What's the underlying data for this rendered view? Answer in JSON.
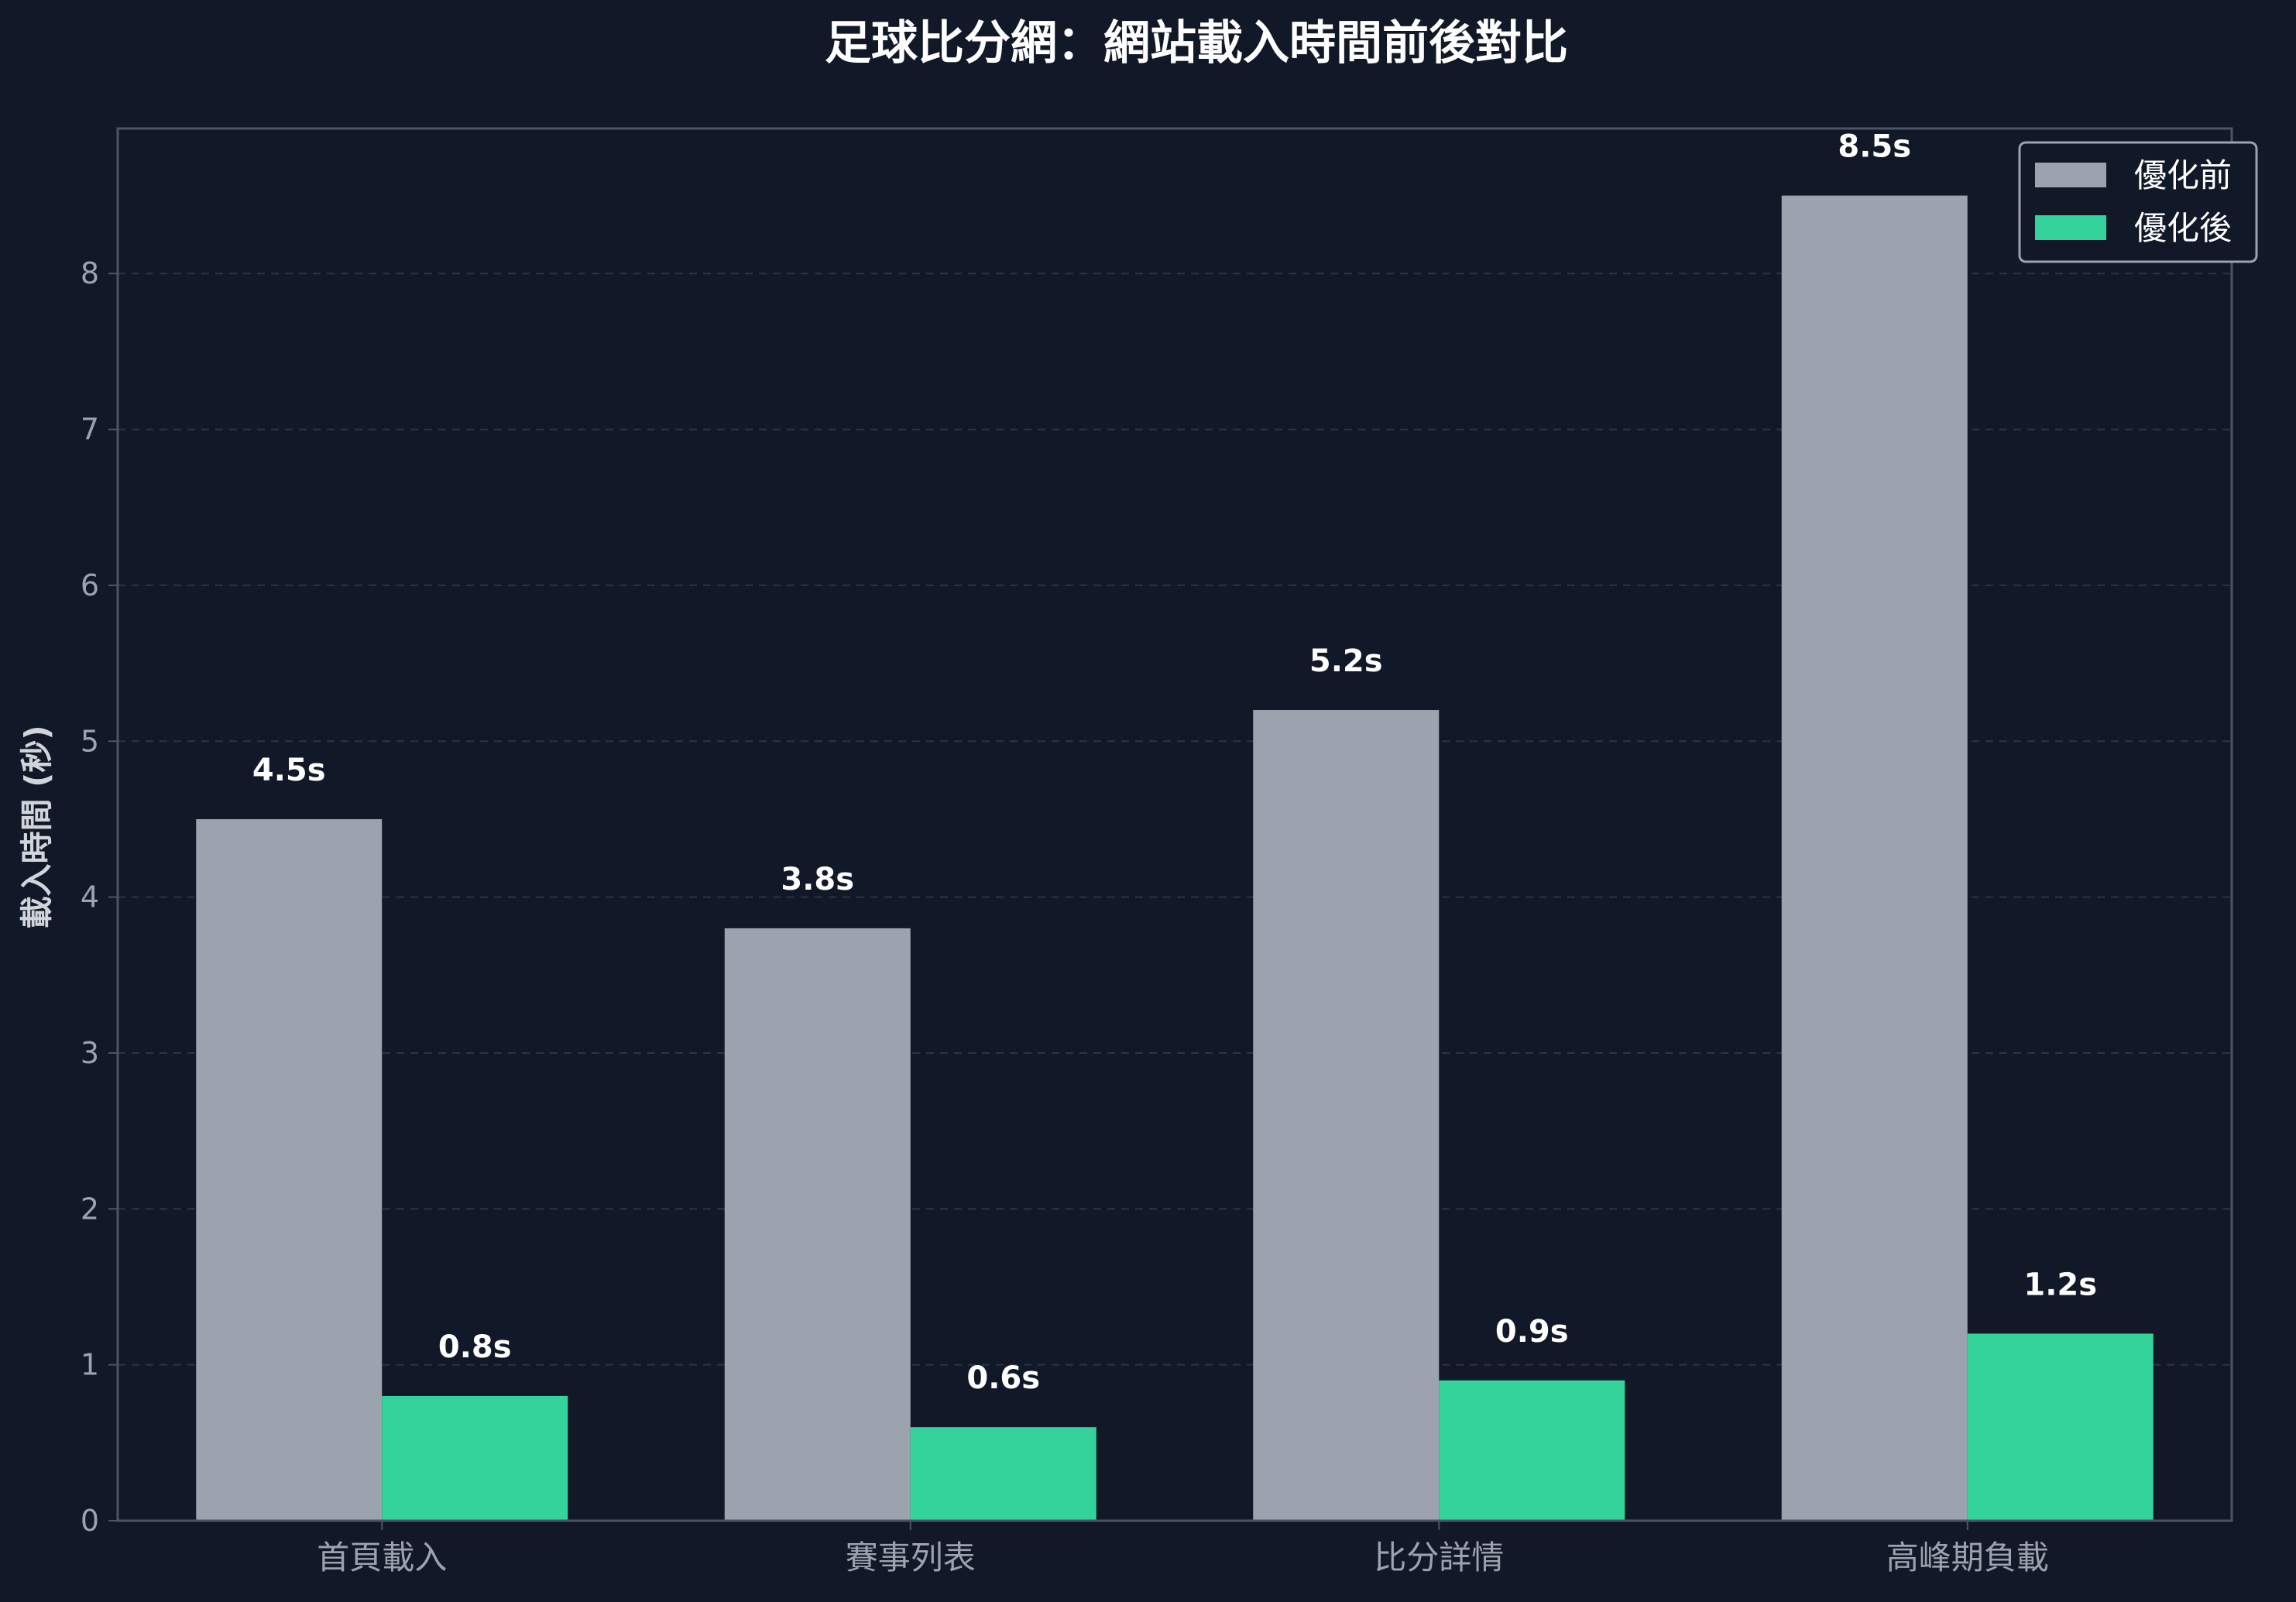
{
  "chart_data": {
    "type": "bar",
    "title": "足球比分網：網站載入時間前後對比",
    "ylabel": "載入時間 (秒)",
    "xlabel": "",
    "ylim": [
      0,
      8.93
    ],
    "yticks": [
      "0",
      "1",
      "2",
      "3",
      "4",
      "5",
      "6",
      "7",
      "8"
    ],
    "categories": [
      "首頁載入",
      "賽事列表",
      "比分詳情",
      "高峰期負載"
    ],
    "series": [
      {
        "name": "優化前",
        "values": [
          4.5,
          3.8,
          5.2,
          8.5
        ],
        "labels": [
          "4.5s",
          "3.8s",
          "5.2s",
          "8.5s"
        ],
        "color": "#9ca3af"
      },
      {
        "name": "優化後",
        "values": [
          0.8,
          0.6,
          0.9,
          1.2
        ],
        "labels": [
          "0.8s",
          "0.6s",
          "0.9s",
          "1.2s"
        ],
        "color": "#34d399"
      }
    ],
    "grid": true,
    "legend": "top-right",
    "colors": {
      "background": "#111827",
      "axes": "#4b5563",
      "grid": "#374151"
    }
  }
}
